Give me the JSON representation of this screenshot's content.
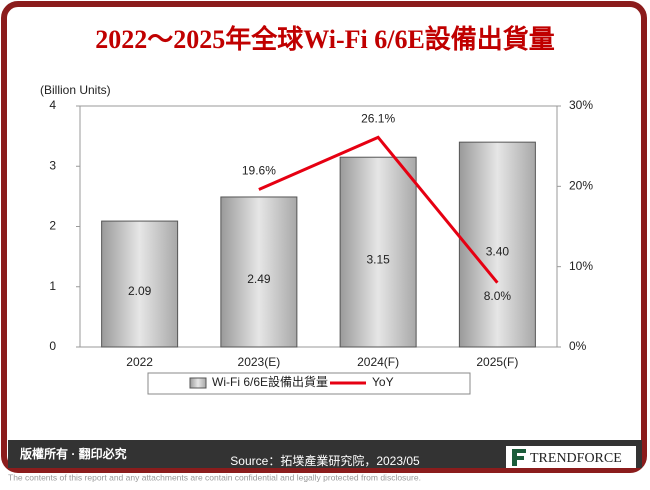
{
  "chart_data": {
    "type": "bar",
    "title": "2022～2025年全球Wi-Fi 6/6E設備出貨量",
    "y_label": "(Billion Units)",
    "categories": [
      "2022",
      "2023(E)",
      "2024(F)",
      "2025(F)"
    ],
    "series": [
      {
        "name": "Wi-Fi 6/6E設備出貨量",
        "type": "bar",
        "color": "#c8c8c8",
        "values": [
          2.09,
          2.49,
          3.15,
          3.4
        ],
        "value_labels": [
          "2.09",
          "2.49",
          "3.15",
          "3.40"
        ]
      },
      {
        "name": "YoY",
        "type": "line",
        "axis": "y2",
        "color": "#e60012",
        "values": [
          null,
          19.6,
          26.1,
          8.0
        ],
        "value_labels": [
          null,
          "19.6%",
          "26.1%",
          "8.0%"
        ]
      }
    ],
    "ylim": [
      0,
      4
    ],
    "yticks": [
      0,
      1,
      2,
      3,
      4
    ],
    "y2lim": [
      0,
      30
    ],
    "y2ticks": [
      {
        "value": 0,
        "label": "0%"
      },
      {
        "value": 10,
        "label": "10%"
      },
      {
        "value": 20,
        "label": "20%"
      },
      {
        "value": 30,
        "label": "30%"
      }
    ],
    "legend": "bottom"
  },
  "footer": {
    "rights": "版權所有 · 翻印必究",
    "source": "Source：拓墣產業研究院，2023/05",
    "brand": "TrendForce",
    "disclaimer": "The contents of this report and any attachments are contain confidential and legally protected from disclosure."
  }
}
